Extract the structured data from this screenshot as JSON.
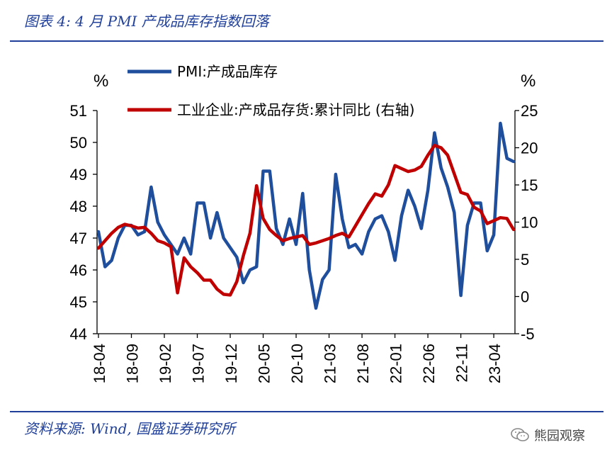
{
  "title": "图表 4: 4 月 PMI 产成品库存指数回落",
  "source": "资料来源: Wind, 国盛证券研究所",
  "watermark": "熊园观察",
  "chart_data": {
    "type": "line",
    "y_left_unit": "%",
    "y_right_unit": "%",
    "ylim_left": [
      44,
      51
    ],
    "ylim_right": [
      -5,
      25
    ],
    "yticks_left": [
      "51",
      "50",
      "49",
      "48",
      "47",
      "46",
      "45",
      "44"
    ],
    "yticks_right": [
      "25",
      "20",
      "15",
      "10",
      "5",
      "0",
      "-5"
    ],
    "x_tick_labels": [
      "18-04",
      "18-09",
      "19-02",
      "19-07",
      "19-12",
      "20-05",
      "20-10",
      "21-03",
      "21-08",
      "22-01",
      "22-06",
      "22-11",
      "23-04"
    ],
    "legend_position": "top",
    "series": [
      {
        "name": "PMI:产成品库存",
        "axis": "left",
        "color": "#1f4e9c",
        "start": "2018-04",
        "values": [
          47.2,
          46.1,
          46.3,
          47.0,
          47.4,
          47.4,
          47.1,
          47.2,
          48.6,
          47.5,
          47.1,
          46.8,
          46.5,
          47.0,
          46.5,
          48.1,
          48.1,
          47.0,
          47.8,
          47.0,
          46.7,
          46.4,
          45.6,
          46.0,
          46.1,
          49.1,
          49.1,
          47.3,
          46.8,
          47.6,
          46.8,
          48.4,
          46.0,
          44.8,
          45.7,
          46.0,
          49.0,
          47.6,
          46.7,
          46.8,
          46.5,
          47.2,
          47.6,
          47.7,
          47.2,
          46.3,
          47.7,
          48.5,
          48.0,
          47.3,
          48.5,
          50.3,
          49.2,
          48.6,
          47.8,
          45.2,
          47.4,
          48.1,
          48.1,
          46.6,
          47.1,
          50.6,
          49.5,
          49.4
        ]
      },
      {
        "name": "工业企业:产成品存货:累计同比 (右轴)",
        "axis": "right",
        "color": "#c00000",
        "start": "2018-04",
        "values": [
          6.5,
          7.5,
          8.5,
          9.3,
          9.7,
          9.5,
          9.2,
          9.3,
          8.5,
          7.5,
          7.2,
          6.7,
          0.5,
          5.2,
          4.0,
          3.2,
          2.2,
          2.2,
          1.0,
          0.3,
          0.2,
          2.0,
          5.5,
          8.5,
          14.9,
          10.5,
          9.0,
          8.2,
          7.5,
          7.8,
          8.0,
          8.2,
          7.0,
          7.2,
          7.5,
          7.8,
          8.2,
          8.5,
          8.0,
          9.5,
          11.0,
          12.5,
          13.8,
          13.5,
          15.0,
          17.6,
          17.2,
          16.8,
          17.0,
          17.5,
          19.0,
          20.3,
          20.0,
          19.0,
          16.5,
          14.0,
          13.7,
          12.0,
          11.5,
          9.8,
          10.2,
          10.6,
          10.5,
          9.0
        ]
      }
    ]
  }
}
